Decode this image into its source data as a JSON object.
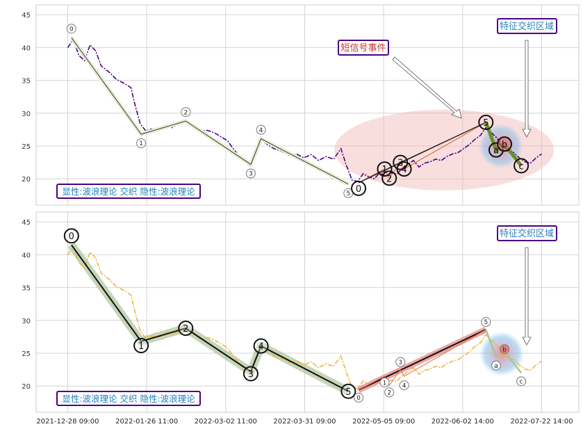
{
  "chart_data": [
    {
      "type": "line",
      "panel": "top",
      "ylim": [
        16,
        46.5
      ],
      "yticks": [
        20,
        25,
        30,
        35,
        40,
        45
      ],
      "grid": true,
      "label_box": "显性:波浪理论 交织 隐性:波浪理论",
      "annotations": [
        {
          "text": "短信号事件",
          "color": "#c0392b"
        },
        {
          "text": "特征交织区域",
          "color": "#2980b9"
        }
      ],
      "price_series": [
        [
          0.0,
          40.0
        ],
        [
          0.6,
          41.2
        ],
        [
          1.2,
          38.8
        ],
        [
          1.8,
          38.0
        ],
        [
          2.4,
          40.4
        ],
        [
          3.0,
          39.5
        ],
        [
          3.6,
          37.2
        ],
        [
          4.5,
          36.2
        ],
        [
          5.2,
          35.2
        ],
        [
          6.0,
          34.6
        ],
        [
          6.8,
          33.9
        ],
        [
          7.2,
          31.5
        ],
        [
          7.8,
          28.4
        ],
        [
          8.4,
          27.3
        ],
        [
          9.0,
          27.6
        ],
        [
          9.8,
          27.4
        ],
        [
          10.6,
          28.2
        ],
        [
          11.2,
          27.8
        ],
        [
          12.0,
          28.4
        ],
        [
          12.8,
          28.6
        ],
        [
          13.5,
          28.2
        ],
        [
          14.2,
          27.2
        ],
        [
          15.0,
          27.4
        ],
        [
          15.8,
          27.0
        ],
        [
          16.5,
          26.4
        ],
        [
          17.2,
          25.8
        ],
        [
          17.8,
          24.6
        ],
        [
          18.4,
          23.6
        ],
        [
          19.0,
          22.6
        ],
        [
          19.6,
          22.0
        ],
        [
          20.2,
          24.2
        ],
        [
          20.8,
          26.0
        ],
        [
          21.5,
          25.2
        ],
        [
          22.2,
          24.6
        ],
        [
          23.0,
          24.2
        ],
        [
          23.8,
          23.6
        ],
        [
          24.6,
          23.8
        ],
        [
          25.4,
          23.2
        ],
        [
          26.2,
          23.7
        ],
        [
          27.0,
          22.8
        ],
        [
          27.8,
          23.4
        ],
        [
          28.6,
          23.0
        ],
        [
          29.4,
          24.6
        ],
        [
          30.0,
          22.0
        ],
        [
          30.6,
          19.8
        ],
        [
          31.2,
          19.6
        ],
        [
          31.8,
          20.8
        ],
        [
          32.4,
          20.3
        ],
        [
          33.0,
          20.0
        ],
        [
          33.6,
          21.0
        ],
        [
          34.2,
          20.4
        ],
        [
          34.8,
          20.9
        ],
        [
          35.4,
          20.7
        ],
        [
          36.0,
          21.6
        ],
        [
          36.6,
          22.2
        ],
        [
          37.2,
          22.8
        ],
        [
          37.8,
          21.8
        ],
        [
          38.4,
          22.4
        ],
        [
          39.0,
          22.6
        ],
        [
          39.6,
          23.0
        ],
        [
          40.2,
          22.8
        ],
        [
          40.8,
          23.4
        ],
        [
          41.4,
          23.8
        ],
        [
          42.0,
          24.0
        ],
        [
          42.6,
          24.6
        ],
        [
          43.2,
          25.2
        ],
        [
          43.8,
          26.0
        ],
        [
          44.4,
          26.6
        ],
        [
          45.0,
          27.8
        ],
        [
          45.6,
          27.0
        ],
        [
          46.2,
          26.2
        ],
        [
          46.8,
          25.0
        ],
        [
          47.4,
          24.2
        ],
        [
          48.0,
          24.0
        ],
        [
          48.6,
          23.2
        ],
        [
          49.2,
          22.6
        ],
        [
          49.8,
          22.4
        ],
        [
          50.4,
          23.2
        ],
        [
          51.0,
          23.8
        ]
      ],
      "wave_nodes_level1": [
        {
          "label": "0",
          "x": 0.4,
          "y": 41.5
        },
        {
          "label": "1",
          "x": 7.9,
          "y": 26.8
        },
        {
          "label": "2",
          "x": 12.7,
          "y": 28.8
        },
        {
          "label": "3",
          "x": 19.7,
          "y": 22.2
        },
        {
          "label": "4",
          "x": 20.8,
          "y": 26.1
        },
        {
          "label": "5",
          "x": 30.2,
          "y": 19.2
        }
      ],
      "wave_nodes_level2": [
        {
          "label": "0",
          "x": 31.3,
          "y": 19.4
        },
        {
          "label": "1",
          "x": 34.1,
          "y": 21.5
        },
        {
          "label": "2",
          "x": 34.6,
          "y": 20.1
        },
        {
          "label": "3",
          "x": 35.8,
          "y": 22.5
        },
        {
          "label": "4",
          "x": 36.2,
          "y": 21.5
        },
        {
          "label": "5",
          "x": 45.0,
          "y": 28.6
        }
      ],
      "corrective_nodes": [
        {
          "label": "a",
          "x": 46.1,
          "y": 24.4
        },
        {
          "label": "b",
          "x": 47.0,
          "y": 25.3
        },
        {
          "label": "c",
          "x": 48.8,
          "y": 22.0
        }
      ],
      "x_ticks": [
        "2021-12-28 09:00",
        "2022-01-26 11:00",
        "2022-03-02 11:00",
        "2022-03-31 09:00",
        "2022-05-05 09:00",
        "2022-06-02 14:00",
        "2022-07-22 14:00"
      ]
    },
    {
      "type": "line",
      "panel": "bottom",
      "ylim": [
        16,
        46.5
      ],
      "yticks": [
        20,
        25,
        30,
        35,
        40,
        45
      ],
      "grid": true,
      "label_box": "显性:波浪理论 交织 隐性:波浪理论",
      "annotations": [
        {
          "text": "特征交织区域",
          "color": "#2980b9"
        }
      ],
      "wave_nodes_level1": [
        {
          "label": "0",
          "x": 0.4,
          "y": 41.5
        },
        {
          "label": "1",
          "x": 7.9,
          "y": 26.8
        },
        {
          "label": "2",
          "x": 12.7,
          "y": 28.8
        },
        {
          "label": "3",
          "x": 19.7,
          "y": 22.2
        },
        {
          "label": "4",
          "x": 20.8,
          "y": 26.1
        },
        {
          "label": "5",
          "x": 30.2,
          "y": 19.2
        }
      ],
      "wave_nodes_level2": [
        {
          "label": "0",
          "x": 31.3,
          "y": 19.4
        },
        {
          "label": "1",
          "x": 34.1,
          "y": 21.5
        },
        {
          "label": "2",
          "x": 34.6,
          "y": 20.1
        },
        {
          "label": "3",
          "x": 35.8,
          "y": 22.5
        },
        {
          "label": "4",
          "x": 36.2,
          "y": 21.5
        },
        {
          "label": "5",
          "x": 45.0,
          "y": 28.6
        }
      ],
      "corrective_nodes": [
        {
          "label": "a",
          "x": 46.1,
          "y": 24.4
        },
        {
          "label": "b",
          "x": 47.0,
          "y": 25.3
        },
        {
          "label": "c",
          "x": 48.8,
          "y": 22.0
        }
      ],
      "x_ticks": [
        "2021-12-28 09:00",
        "2022-01-26 11:00",
        "2022-03-02 11:00",
        "2022-03-31 09:00",
        "2022-05-05 09:00",
        "2022-06-02 14:00",
        "2022-07-22 14:00"
      ]
    }
  ],
  "colors": {
    "top_price": "#4b0082",
    "bottom_price": "#f0b43c",
    "wave_band": "#9fb98a",
    "sub_band": "#e89090",
    "corrective": "#6b8e23",
    "label_box_border": "#4b0082",
    "label_box_text": "#1e7fc0"
  }
}
